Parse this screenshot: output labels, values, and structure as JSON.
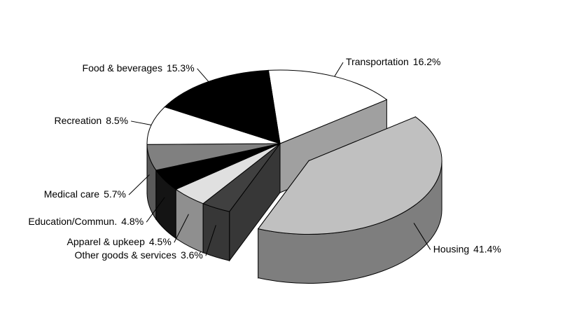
{
  "chart_data": {
    "type": "pie",
    "categories": [
      "Transportation",
      "Housing",
      "Other goods & services",
      "Apparel & upkeep",
      "Education/Commun.",
      "Medical care",
      "Recreation",
      "Food & beverages"
    ],
    "values": [
      16.2,
      41.4,
      3.6,
      4.5,
      4.8,
      5.7,
      8.5,
      15.3
    ],
    "value_labels": [
      "16.2%",
      "41.4%",
      "3.6%",
      "4.5%",
      "4.8%",
      "5.7%",
      "8.5%",
      "15.3%"
    ],
    "colors": [
      "#ffffff",
      "#c0c0c0",
      "#404040",
      "#e0e0e0",
      "#000000",
      "#808080",
      "#ffffff",
      "#000000"
    ],
    "exploded": [
      "Housing"
    ]
  }
}
